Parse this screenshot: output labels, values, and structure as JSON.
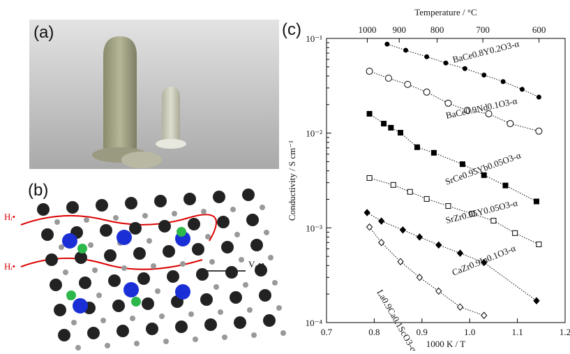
{
  "panels": {
    "a": "(a)",
    "b": "(b)",
    "c": "(c)",
    "b_labels": {
      "h_top": "Hᵢ•",
      "h_bottom": "Hᵢ•",
      "vacancy": "V₀••"
    }
  },
  "chart_data": {
    "type": "scatter",
    "log_y": true,
    "xlabel": "1000 K / T",
    "ylabel": "Conductivity / S cm⁻¹",
    "x2label": "Temperature / °C",
    "xlim": [
      0.7,
      1.2
    ],
    "xticks": [
      {
        "value": 0.7,
        "label": "0.7"
      },
      {
        "value": 0.8,
        "label": "0.8"
      },
      {
        "value": 0.9,
        "label": "0.9"
      },
      {
        "value": 1.0,
        "label": "1.0"
      },
      {
        "value": 1.1,
        "label": "1.1"
      },
      {
        "value": 1.2,
        "label": "1.2"
      }
    ],
    "x2ticks": [
      1000,
      900,
      800,
      700,
      600
    ],
    "ylim": [
      0.0001,
      0.1
    ],
    "yticks": [
      {
        "value": 0.0001,
        "label": "10⁻⁴"
      },
      {
        "value": 0.001,
        "label": "10⁻³"
      },
      {
        "value": 0.01,
        "label": "10⁻²"
      },
      {
        "value": 0.1,
        "label": "10⁻¹"
      }
    ],
    "series": [
      {
        "name": "BaCe0.8Y0.2O3-α",
        "color": "#000",
        "marker": "circle",
        "filled": true,
        "x": [
          0.827,
          0.866,
          0.91,
          0.95,
          0.99,
          1.03,
          1.07,
          1.11,
          1.145
        ],
        "values": [
          0.087,
          0.075,
          0.064,
          0.055,
          0.048,
          0.041,
          0.035,
          0.029,
          0.024
        ]
      },
      {
        "name": "BaCe0.9Nd0.1O3-α",
        "color": "#000",
        "marker": "circle",
        "filled": false,
        "x": [
          0.79,
          0.83,
          0.87,
          0.91,
          0.955,
          0.995,
          1.04,
          1.085,
          1.145
        ],
        "values": [
          0.045,
          0.038,
          0.0327,
          0.0271,
          0.0207,
          0.0174,
          0.016,
          0.0126,
          0.0105
        ]
      },
      {
        "name": "SrCe0.95Yb0.05O3-α",
        "color": "#000",
        "marker": "square",
        "filled": true,
        "x": [
          0.79,
          0.82,
          0.835,
          0.855,
          0.89,
          0.925,
          0.985,
          1.03,
          1.075,
          1.14
        ],
        "values": [
          0.016,
          0.0126,
          0.0114,
          0.0101,
          0.0071,
          0.0062,
          0.0047,
          0.0036,
          0.0028,
          0.0019
        ]
      },
      {
        "name": "SrZr0.95Y0.05O3-α",
        "color": "#000",
        "marker": "square",
        "filled": false,
        "x": [
          0.79,
          0.84,
          0.875,
          0.91,
          0.955,
          1.005,
          1.05,
          1.095,
          1.145
        ],
        "values": [
          0.00336,
          0.00284,
          0.0024,
          0.00202,
          0.0017,
          0.00141,
          0.00119,
          0.00088,
          0.00067
        ]
      },
      {
        "name": "CaZr0.9In0.1O3-α",
        "color": "#000",
        "marker": "diamond",
        "filled": true,
        "x": [
          0.785,
          0.815,
          0.86,
          0.895,
          0.935,
          0.98,
          1.03,
          1.14
        ],
        "values": [
          0.00145,
          0.00118,
          0.00095,
          0.0008,
          0.00066,
          0.00054,
          0.00043,
          0.00017
        ]
      },
      {
        "name": "La0.9Ca0.1ScO3-α",
        "color": "#000",
        "marker": "diamond",
        "filled": false,
        "x": [
          0.79,
          0.815,
          0.855,
          0.895,
          0.935,
          0.98,
          1.03
        ],
        "values": [
          0.00102,
          0.0007,
          0.00044,
          0.0003,
          0.000215,
          0.000146,
          0.000119
        ]
      }
    ]
  }
}
